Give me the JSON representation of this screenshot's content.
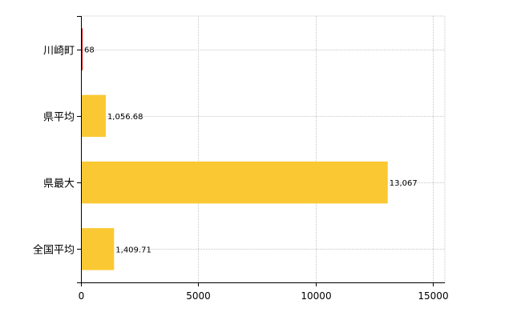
{
  "chart_data": {
    "type": "bar",
    "orientation": "horizontal",
    "title": "",
    "xlabel": "",
    "ylabel": "",
    "categories": [
      "川崎町",
      "県平均",
      "県最大",
      "全国平均"
    ],
    "values": [
      68,
      1056.68,
      13067,
      1409.71
    ],
    "data_labels": [
      "68",
      "1,056.68",
      "13,067",
      "1,409.71"
    ],
    "bar_colors": [
      "#cc0000",
      "#fac832",
      "#fac832",
      "#fac832"
    ],
    "xlim": [
      0,
      15500
    ],
    "x_ticks": [
      0,
      5000,
      10000,
      15000
    ],
    "x_tick_labels": [
      "0",
      "5000",
      "10000",
      "15000"
    ],
    "grid": true,
    "grid_style": "dotted",
    "grid_color": "#c8c8c8",
    "axis_color": "#000000",
    "legend": "none"
  }
}
